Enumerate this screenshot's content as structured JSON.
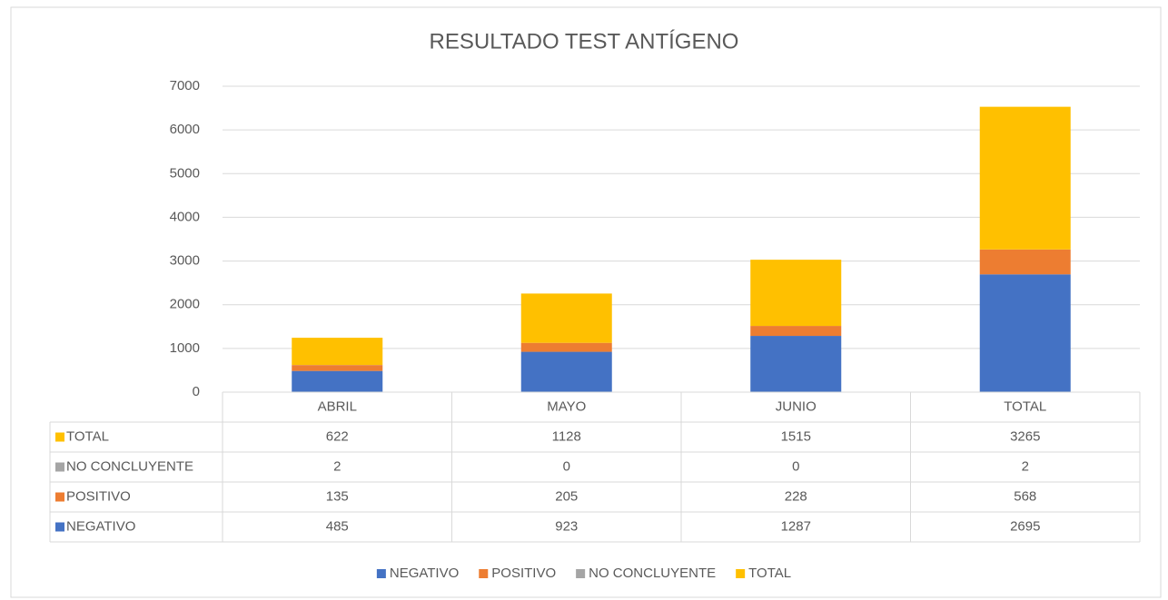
{
  "chart_data": {
    "type": "stacked_bar",
    "title": "RESULTADO TEST ANTÍGENO",
    "categories": [
      "ABRIL",
      "MAYO",
      "JUNIO",
      "TOTAL"
    ],
    "series": [
      {
        "name": "NEGATIVO",
        "color": "#4472c4",
        "values": [
          485,
          923,
          1287,
          2695
        ]
      },
      {
        "name": "POSITIVO",
        "color": "#ed7d31",
        "values": [
          135,
          205,
          228,
          568
        ]
      },
      {
        "name": "NO CONCLUYENTE",
        "color": "#a5a5a5",
        "values": [
          2,
          0,
          0,
          2
        ]
      },
      {
        "name": "TOTAL",
        "color": "#ffc000",
        "values": [
          622,
          1128,
          1515,
          3265
        ]
      }
    ],
    "ylim": [
      0,
      7000
    ],
    "yticks": [
      0,
      1000,
      2000,
      3000,
      4000,
      5000,
      6000,
      7000
    ],
    "grid": true,
    "legend": "bottom",
    "data_table": true
  }
}
